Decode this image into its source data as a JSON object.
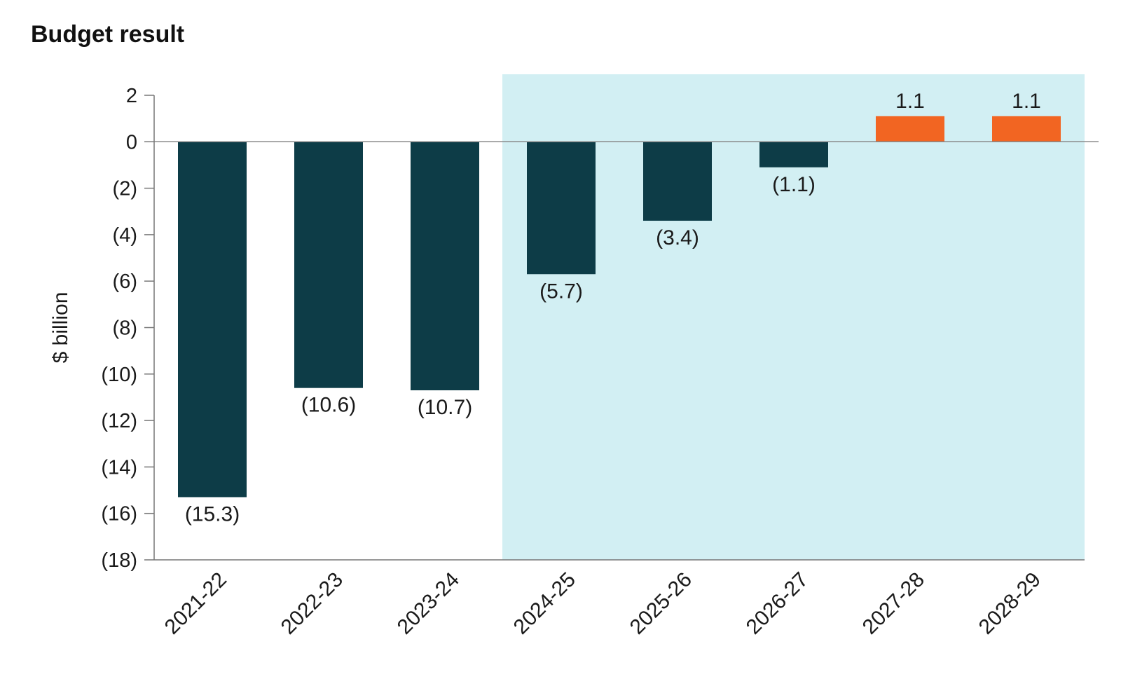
{
  "title": "Budget result",
  "chart_data": {
    "type": "bar",
    "title": "Budget result",
    "xlabel": "",
    "ylabel": "$ billion",
    "ylim": [
      -18,
      2
    ],
    "yticks": [
      {
        "value": 2,
        "label": "2"
      },
      {
        "value": 0,
        "label": "0"
      },
      {
        "value": -2,
        "label": "(2)"
      },
      {
        "value": -4,
        "label": "(4)"
      },
      {
        "value": -6,
        "label": "(6)"
      },
      {
        "value": -8,
        "label": "(8)"
      },
      {
        "value": -10,
        "label": "(10)"
      },
      {
        "value": -12,
        "label": "(12)"
      },
      {
        "value": -14,
        "label": "(14)"
      },
      {
        "value": -16,
        "label": "(16)"
      },
      {
        "value": -18,
        "label": "(18)"
      }
    ],
    "categories": [
      "2021-22",
      "2022-23",
      "2023-24",
      "2024-25",
      "2025-26",
      "2026-27",
      "2027-28",
      "2028-29"
    ],
    "values": [
      -15.3,
      -10.6,
      -10.7,
      -5.7,
      -3.4,
      -1.1,
      1.1,
      1.1
    ],
    "data_labels": [
      "(15.3)",
      "(10.6)",
      "(10.7)",
      "(5.7)",
      "(3.4)",
      "(1.1)",
      "1.1",
      "1.1"
    ],
    "shaded_region_categories": [
      "2024-25",
      "2025-26",
      "2026-27",
      "2027-28",
      "2028-29"
    ],
    "grid": false,
    "colors": {
      "negative": "#0d3c47",
      "positive": "#f26522",
      "shaded_background": "#d2eff3",
      "axis": "#777777",
      "zero_line": "#888888"
    }
  }
}
